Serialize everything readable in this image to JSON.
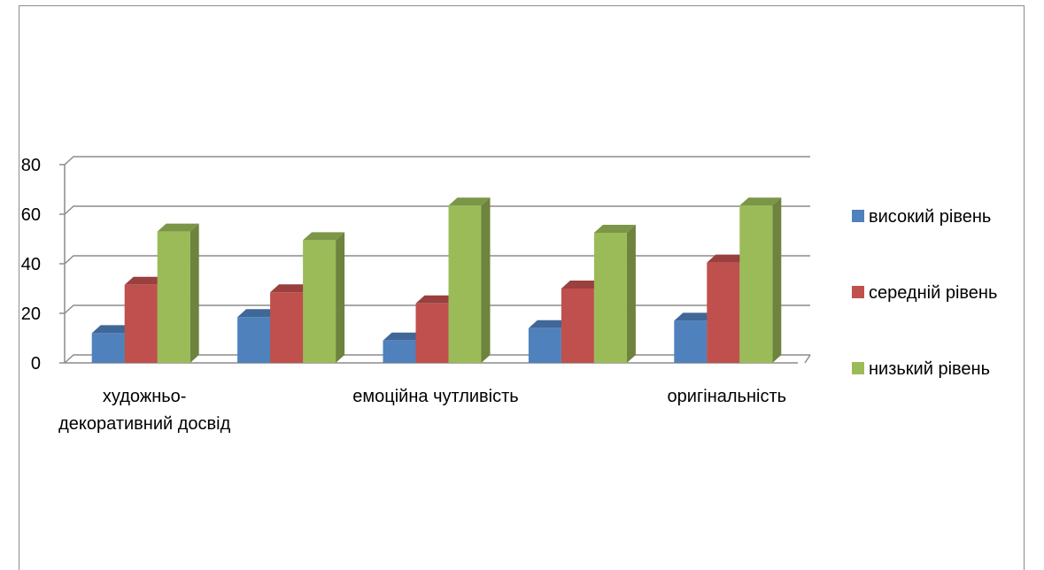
{
  "chart_data": {
    "type": "bar",
    "style": "3d-clustered-column",
    "categories": [
      [
        "художньо-",
        "декоративний досвід"
      ],
      [],
      [
        "емоційна чутливість"
      ],
      [],
      [
        "оригінальність"
      ]
    ],
    "series": [
      {
        "name": "високий рівень",
        "color": "#4f81bd",
        "values": [
          12,
          18.5,
          9,
          14,
          17
        ]
      },
      {
        "name": "середній рівень",
        "color": "#c0504d",
        "values": [
          31.5,
          28.5,
          24,
          30,
          40.5
        ]
      },
      {
        "name": "низький рівень",
        "color": "#9bbb59",
        "values": [
          53,
          49.5,
          63.5,
          52.5,
          63.5
        ]
      }
    ],
    "yticks": [
      "0",
      "20",
      "40",
      "60",
      "80"
    ],
    "ylim": [
      0,
      80
    ],
    "grid": true,
    "legend_position": "right"
  }
}
